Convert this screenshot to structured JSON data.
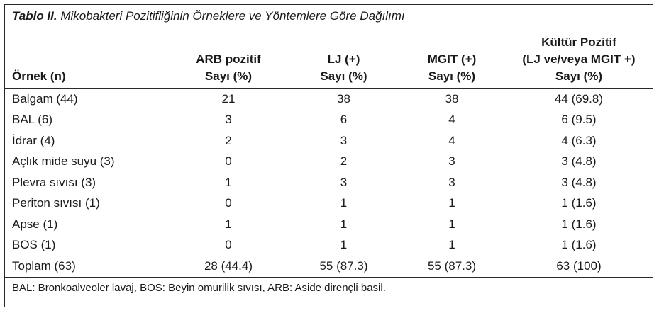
{
  "caption": {
    "label": "Tablo II.",
    "text": " Mikobakteri Pozitifliğinin Örneklere ve Yöntemlere Göre Dağılımı"
  },
  "headers": [
    [
      "Örnek (n)"
    ],
    [
      "ARB pozitif",
      "Sayı (%)"
    ],
    [
      "LJ (+)",
      "Sayı (%)"
    ],
    [
      "MGIT (+)",
      "Sayı (%)"
    ],
    [
      "Kültür Pozitif",
      "(LJ ve/veya MGIT +)",
      "Sayı (%)"
    ]
  ],
  "rows": [
    [
      "Balgam (44)",
      "21",
      "38",
      "38",
      "44 (69.8)"
    ],
    [
      "BAL (6)",
      "3",
      "6",
      "4",
      "6 (9.5)"
    ],
    [
      "İdrar (4)",
      "2",
      "3",
      "4",
      "4 (6.3)"
    ],
    [
      "Açlık mide suyu (3)",
      "0",
      "2",
      "3",
      "3 (4.8)"
    ],
    [
      "Plevra sıvısı (3)",
      "1",
      "3",
      "3",
      "3 (4.8)"
    ],
    [
      "Periton sıvısı (1)",
      "0",
      "1",
      "1",
      "1 (1.6)"
    ],
    [
      "Apse (1)",
      "1",
      "1",
      "1",
      "1 (1.6)"
    ],
    [
      "BOS (1)",
      "0",
      "1",
      "1",
      "1 (1.6)"
    ],
    [
      "Toplam (63)",
      "28 (44.4)",
      "55 (87.3)",
      "55 (87.3)",
      "63 (100)"
    ]
  ],
  "footnote": "BAL: Bronkoalveoler lavaj, BOS: Beyin omurilik sıvısı, ARB: Aside dirençli basil."
}
